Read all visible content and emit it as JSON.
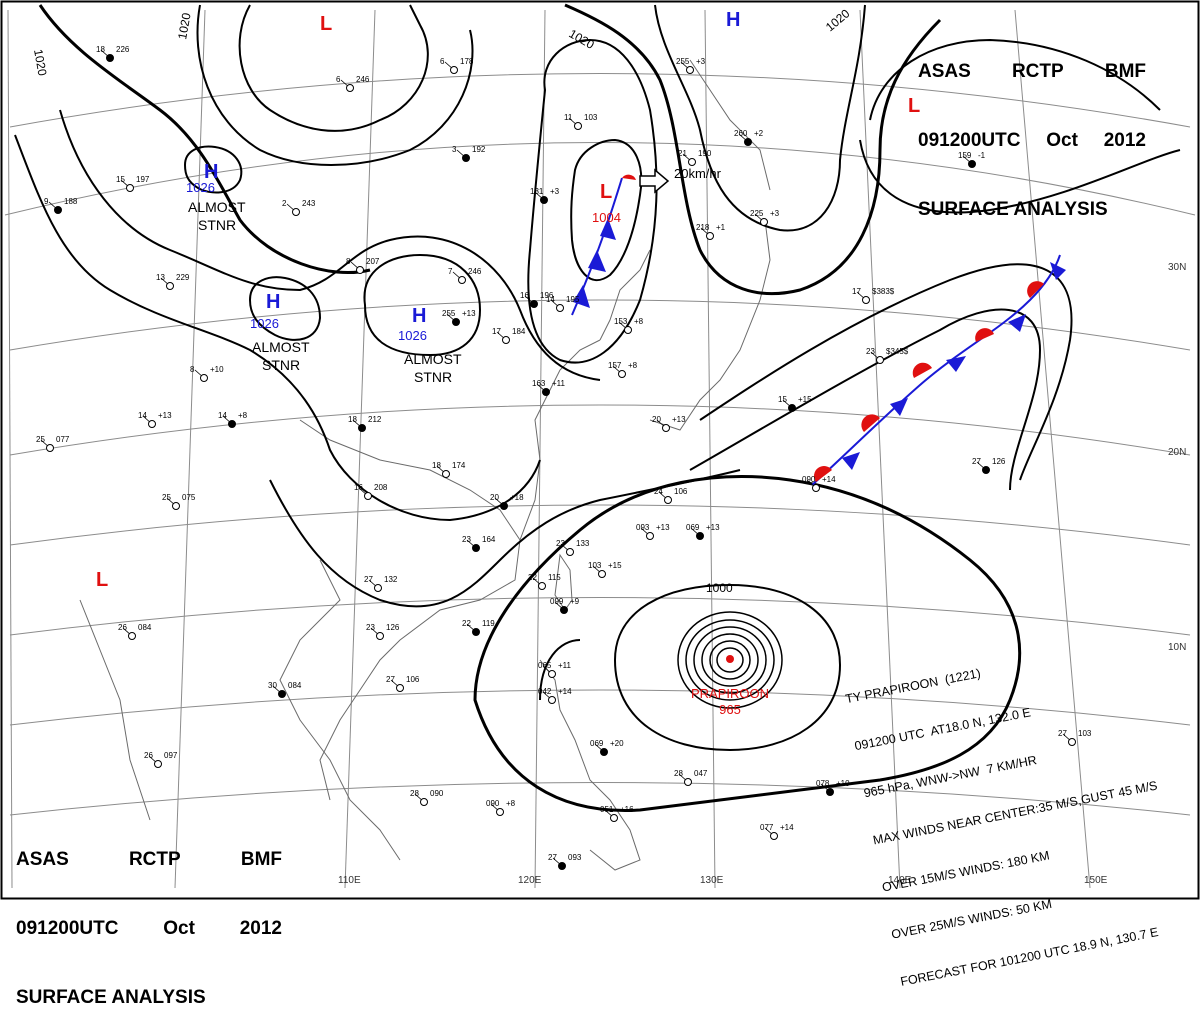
{
  "header": {
    "line1": [
      "ASAS",
      "RCTP",
      "BMF"
    ],
    "line2": [
      "091200UTC",
      "Oct",
      "2012"
    ],
    "line3": "SURFACE ANALYSIS"
  },
  "isobar_labels": {
    "a": "1020",
    "b": "1020",
    "c": "1020",
    "d": "1020",
    "e": "1000"
  },
  "pressure_systems": {
    "highs": [
      {
        "symbol": "H",
        "value": "1026",
        "note1": "ALMOST",
        "note2": "STNR"
      },
      {
        "symbol": "H",
        "value": "1026",
        "note1": "ALMOST",
        "note2": "STNR"
      },
      {
        "symbol": "H",
        "value": "1026",
        "note1": "ALMOST",
        "note2": "STNR"
      },
      {
        "symbol": "H"
      }
    ],
    "lows": [
      {
        "symbol": "L"
      },
      {
        "symbol": "L"
      },
      {
        "symbol": "L",
        "value": "1004"
      },
      {
        "symbol": "L"
      }
    ],
    "typhoon": {
      "name": "PRAPIROON",
      "value": "965"
    }
  },
  "motion": {
    "speed": "20km/hr"
  },
  "lat_labels": [
    "30N",
    "20N",
    "10N"
  ],
  "lon_labels": [
    "110E",
    "120E",
    "130E",
    "140E",
    "150E"
  ],
  "typhoon_bulletin": [
    "TY PRAPIROON  (1221)",
    "091200 UTC  AT18.0 N, 132.0 E",
    "965 hPa, WNW->NW  7 KM/HR",
    "MAX WINDS NEAR CENTER:35 M/S,GUST 45 M/S",
    "OVER 15M/S WINDS: 180 KM",
    "OVER 25M/S WINDS: 50 KM",
    "FORECAST FOR 101200 UTC 18.9 N, 130.7 E"
  ],
  "stations": [
    {
      "t": "18",
      "p": "226"
    },
    {
      "t": "6",
      "p": "246"
    },
    {
      "t": "15",
      "p": "197"
    },
    {
      "t": "9",
      "p": "188"
    },
    {
      "t": "6",
      "p": "178"
    },
    {
      "t": "13",
      "p": "229"
    },
    {
      "t": "3",
      "p": "192"
    },
    {
      "t": "2",
      "p": "243"
    },
    {
      "t": "8",
      "p": "207"
    },
    {
      "t": "255",
      "p": "+13"
    },
    {
      "t": "7",
      "p": "246"
    },
    {
      "t": "17",
      "p": "184"
    },
    {
      "t": "16",
      "p": "196"
    },
    {
      "t": "14",
      "p": "195"
    },
    {
      "t": "11",
      "p": "103"
    },
    {
      "t": "131",
      "p": "+3"
    },
    {
      "t": "255",
      "p": "+3"
    },
    {
      "t": "21",
      "p": "190"
    },
    {
      "t": "260",
      "p": "+2"
    },
    {
      "t": "225",
      "p": "+3"
    },
    {
      "t": "218",
      "p": "+1"
    },
    {
      "t": "159",
      "p": "-1"
    },
    {
      "t": "17",
      "p": "$383$"
    },
    {
      "t": "23",
      "p": "$345$"
    },
    {
      "t": "15",
      "p": "+15"
    },
    {
      "t": "8",
      "p": "+10"
    },
    {
      "t": "14",
      "p": "+13"
    },
    {
      "t": "14",
      "p": "+8"
    },
    {
      "t": "25",
      "p": "077"
    },
    {
      "t": "25",
      "p": "075"
    },
    {
      "t": "18",
      "p": "212"
    },
    {
      "t": "18",
      "p": "174"
    },
    {
      "t": "16",
      "p": "208"
    },
    {
      "t": "20",
      "p": "+18"
    },
    {
      "t": "153",
      "p": "+8"
    },
    {
      "t": "157",
      "p": "+8"
    },
    {
      "t": "163",
      "p": "+11"
    },
    {
      "t": "20",
      "p": "+13"
    },
    {
      "t": "24",
      "p": "106"
    },
    {
      "t": "23",
      "p": "164"
    },
    {
      "t": "23",
      "p": "133"
    },
    {
      "t": "093",
      "p": "+13"
    },
    {
      "t": "069",
      "p": "+13"
    },
    {
      "t": "103",
      "p": "+15"
    },
    {
      "t": "22",
      "p": "115"
    },
    {
      "t": "099",
      "p": "+9"
    },
    {
      "t": "27",
      "p": "132"
    },
    {
      "t": "23",
      "p": "126"
    },
    {
      "t": "22",
      "p": "119"
    },
    {
      "t": "26",
      "p": "084"
    },
    {
      "t": "27",
      "p": "106"
    },
    {
      "t": "30",
      "p": "084"
    },
    {
      "t": "065",
      "p": "+11"
    },
    {
      "t": "042",
      "p": "+14"
    },
    {
      "t": "069",
      "p": "+20"
    },
    {
      "t": "28",
      "p": "047"
    },
    {
      "t": "28",
      "p": "090"
    },
    {
      "t": "27",
      "p": "093"
    },
    {
      "t": "090",
      "p": "+14"
    },
    {
      "t": "051",
      "p": "+16"
    },
    {
      "t": "078",
      "p": "+10"
    },
    {
      "t": "077",
      "p": "+14"
    },
    {
      "t": "27",
      "p": "103"
    },
    {
      "t": "27",
      "p": "126"
    },
    {
      "t": "090",
      "p": "+8"
    },
    {
      "t": "26",
      "p": "097"
    }
  ],
  "colors": {
    "high": "#1a1ad6",
    "low": "#e01010",
    "line": "#000000",
    "grid": "#8c8c8c"
  }
}
